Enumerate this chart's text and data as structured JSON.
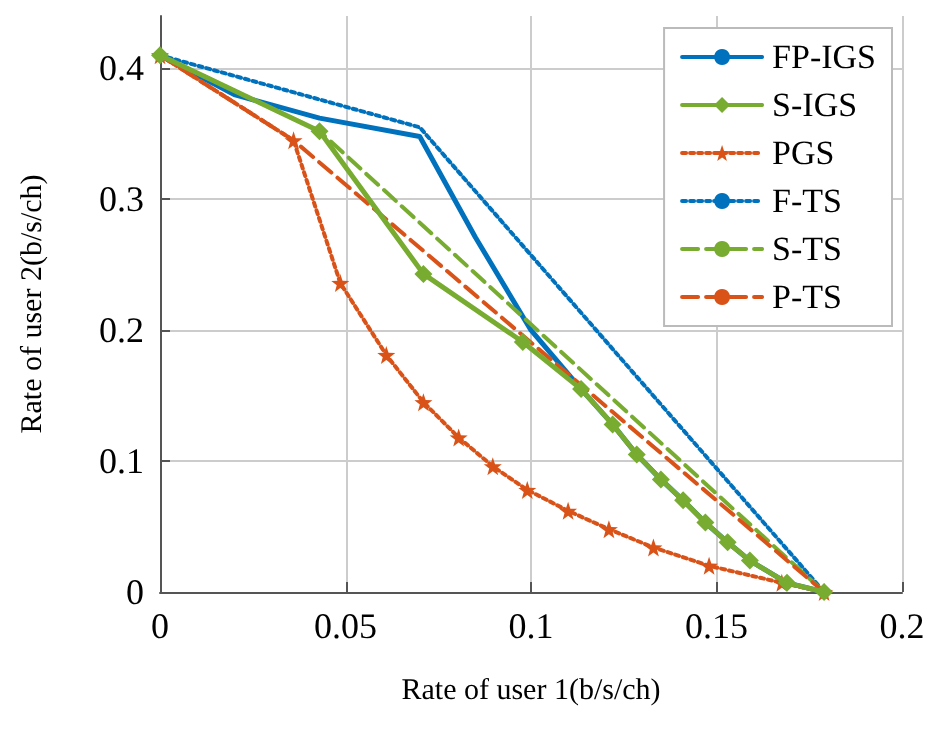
{
  "chart_data": {
    "type": "line",
    "xlabel": "Rate of user 1(b/s/ch)",
    "ylabel": "Rate of user 2(b/s/ch)",
    "xlim": [
      0,
      0.2
    ],
    "xticks": [
      0,
      0.05,
      0.1,
      0.15,
      0.2
    ],
    "ylim": [
      0,
      0.44
    ],
    "yticks": [
      0,
      0.1,
      0.2,
      0.3,
      0.4
    ],
    "grid": true,
    "legend": "top right",
    "series": [
      {
        "name": "FP-IGS",
        "color": "#0072bd",
        "line_style": "solid",
        "marker": "none",
        "x": [
          0,
          0.02,
          0.043,
          0.07,
          0.085,
          0.1,
          0.1135,
          0.122,
          0.1285,
          0.135,
          0.141,
          0.147,
          0.153,
          0.159,
          0.169,
          0.179
        ],
        "values": [
          0.41,
          0.38,
          0.362,
          0.348,
          0.271,
          0.2,
          0.155,
          0.128,
          0.105,
          0.086,
          0.07,
          0.053,
          0.038,
          0.024,
          0.007,
          0
        ]
      },
      {
        "name": "S-IGS",
        "color": "#77ac30",
        "line_style": "solid",
        "marker": "diamond",
        "x": [
          0,
          0.043,
          0.071,
          0.0978,
          0.1135,
          0.122,
          0.1285,
          0.135,
          0.141,
          0.147,
          0.153,
          0.159,
          0.169,
          0.179
        ],
        "values": [
          0.41,
          0.352,
          0.243,
          0.191,
          0.155,
          0.128,
          0.105,
          0.086,
          0.07,
          0.053,
          0.038,
          0.024,
          0.007,
          0
        ]
      },
      {
        "name": "PGS",
        "color": "#d95319",
        "line_style": "dotted",
        "marker": "star",
        "x": [
          0,
          0.036,
          0.0486,
          0.061,
          0.071,
          0.0805,
          0.0897,
          0.099,
          0.11,
          0.121,
          0.133,
          0.148,
          0.1676,
          0.179
        ],
        "values": [
          0.41,
          0.345,
          0.236,
          0.181,
          0.145,
          0.118,
          0.096,
          0.078,
          0.062,
          0.048,
          0.034,
          0.02,
          0.007,
          0
        ]
      },
      {
        "name": "F-TS",
        "color": "#0072bd",
        "line_style": "dotted",
        "marker": "none",
        "x": [
          0,
          0.07,
          0.179
        ],
        "values": [
          0.41,
          0.355,
          0
        ]
      },
      {
        "name": "S-TS",
        "color": "#77ac30",
        "line_style": "dashed",
        "marker": "none",
        "x": [
          0,
          0.043,
          0.179
        ],
        "values": [
          0.41,
          0.352,
          0
        ]
      },
      {
        "name": "P-TS",
        "color": "#d95319",
        "line_style": "dashed",
        "marker": "none",
        "x": [
          0,
          0.036,
          0.179
        ],
        "values": [
          0.41,
          0.345,
          0
        ]
      }
    ]
  }
}
